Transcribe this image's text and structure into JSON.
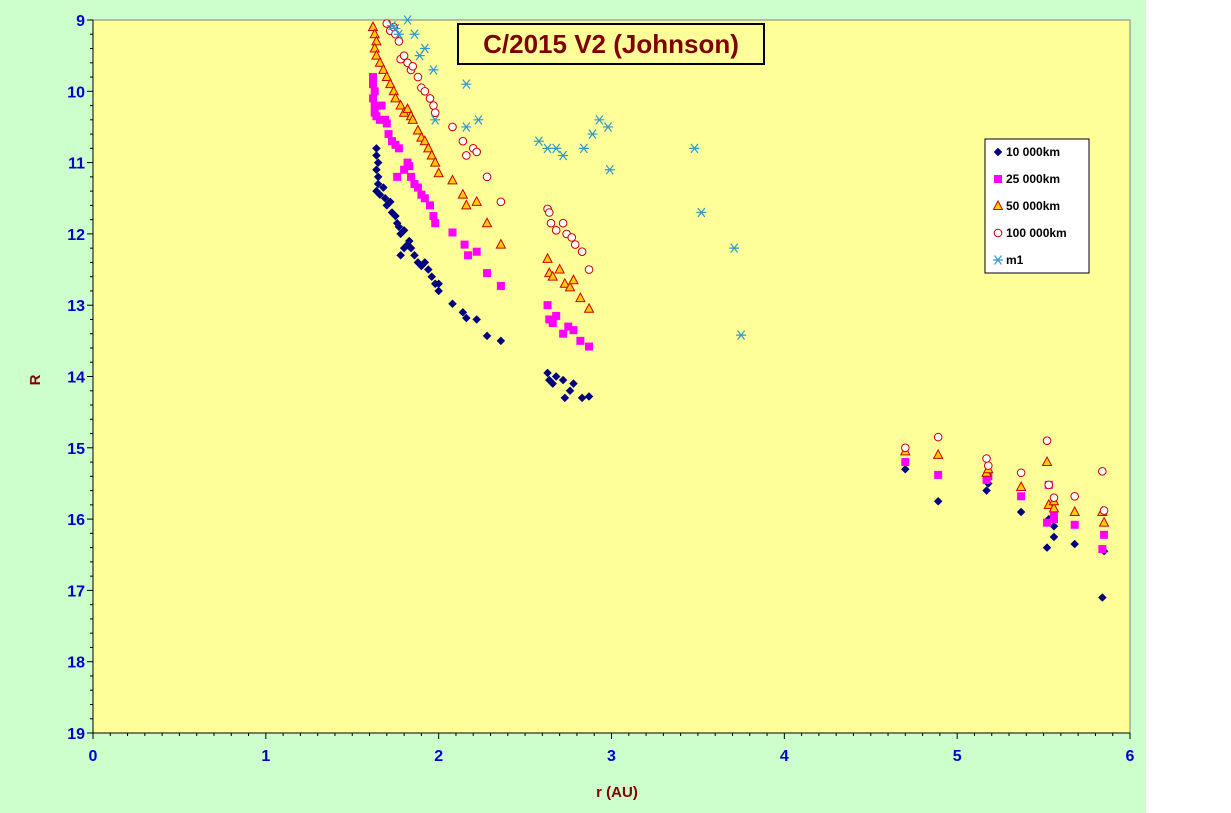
{
  "chart_data": {
    "type": "scatter",
    "title": "C/2015 V2 (Johnson)",
    "xlabel": "r (AU)",
    "ylabel": "R",
    "xlim": [
      0,
      6
    ],
    "ylim": [
      9,
      19
    ],
    "y_inverted": true,
    "x_ticks": [
      "0",
      "1",
      "2",
      "3",
      "4",
      "5",
      "6"
    ],
    "y_ticks": [
      "9",
      "10",
      "11",
      "12",
      "13",
      "14",
      "15",
      "16",
      "17",
      "18",
      "19"
    ],
    "grid": false,
    "plot_background": "#ffff99",
    "chart_background": "#ccffcc",
    "legend_position": "right",
    "series": [
      {
        "name": "10 000km",
        "marker": "diamond",
        "color": "#000080",
        "points": [
          [
            1.64,
            10.8
          ],
          [
            1.64,
            10.9
          ],
          [
            1.65,
            11.0
          ],
          [
            1.64,
            11.1
          ],
          [
            1.65,
            11.2
          ],
          [
            1.65,
            11.3
          ],
          [
            1.64,
            11.4
          ],
          [
            1.66,
            11.45
          ],
          [
            1.68,
            11.35
          ],
          [
            1.69,
            11.5
          ],
          [
            1.7,
            11.6
          ],
          [
            1.72,
            11.55
          ],
          [
            1.73,
            11.7
          ],
          [
            1.75,
            11.75
          ],
          [
            1.76,
            11.85
          ],
          [
            1.77,
            11.9
          ],
          [
            1.78,
            12.0
          ],
          [
            1.8,
            11.95
          ],
          [
            1.78,
            12.3
          ],
          [
            1.8,
            12.2
          ],
          [
            1.82,
            12.15
          ],
          [
            1.83,
            12.1
          ],
          [
            1.84,
            12.2
          ],
          [
            1.86,
            12.3
          ],
          [
            1.88,
            12.4
          ],
          [
            1.9,
            12.45
          ],
          [
            1.92,
            12.4
          ],
          [
            1.94,
            12.5
          ],
          [
            1.96,
            12.6
          ],
          [
            1.98,
            12.7
          ],
          [
            2.0,
            12.8
          ],
          [
            2.0,
            12.7
          ],
          [
            2.08,
            12.98
          ],
          [
            2.14,
            13.1
          ],
          [
            2.16,
            13.18
          ],
          [
            2.22,
            13.2
          ],
          [
            2.28,
            13.43
          ],
          [
            2.36,
            13.5
          ],
          [
            2.63,
            13.95
          ],
          [
            2.64,
            14.05
          ],
          [
            2.66,
            14.1
          ],
          [
            2.68,
            14.0
          ],
          [
            2.72,
            14.05
          ],
          [
            2.73,
            14.3
          ],
          [
            2.76,
            14.2
          ],
          [
            2.78,
            14.1
          ],
          [
            2.83,
            14.3
          ],
          [
            2.87,
            14.28
          ],
          [
            4.7,
            15.3
          ],
          [
            4.89,
            15.75
          ],
          [
            5.17,
            15.6
          ],
          [
            5.18,
            15.5
          ],
          [
            5.37,
            15.9
          ],
          [
            5.52,
            16.4
          ],
          [
            5.53,
            16.0
          ],
          [
            5.56,
            16.25
          ],
          [
            5.56,
            16.1
          ],
          [
            5.68,
            16.35
          ],
          [
            5.84,
            17.1
          ],
          [
            5.85,
            16.45
          ]
        ]
      },
      {
        "name": "25 000km",
        "marker": "square",
        "color": "#ff00ff",
        "points": [
          [
            1.62,
            9.8
          ],
          [
            1.62,
            9.9
          ],
          [
            1.63,
            10.0
          ],
          [
            1.62,
            10.1
          ],
          [
            1.63,
            10.2
          ],
          [
            1.63,
            10.3
          ],
          [
            1.64,
            10.35
          ],
          [
            1.66,
            10.4
          ],
          [
            1.67,
            10.2
          ],
          [
            1.69,
            10.4
          ],
          [
            1.7,
            10.45
          ],
          [
            1.71,
            10.6
          ],
          [
            1.73,
            10.7
          ],
          [
            1.75,
            10.75
          ],
          [
            1.77,
            10.8
          ],
          [
            1.76,
            11.2
          ],
          [
            1.8,
            11.1
          ],
          [
            1.82,
            11.0
          ],
          [
            1.83,
            11.05
          ],
          [
            1.84,
            11.2
          ],
          [
            1.86,
            11.3
          ],
          [
            1.88,
            11.35
          ],
          [
            1.9,
            11.45
          ],
          [
            1.92,
            11.5
          ],
          [
            1.95,
            11.6
          ],
          [
            1.97,
            11.75
          ],
          [
            1.98,
            11.85
          ],
          [
            2.08,
            11.98
          ],
          [
            2.15,
            12.15
          ],
          [
            2.17,
            12.3
          ],
          [
            2.22,
            12.25
          ],
          [
            2.28,
            12.55
          ],
          [
            2.36,
            12.73
          ],
          [
            2.63,
            13.0
          ],
          [
            2.64,
            13.2
          ],
          [
            2.66,
            13.25
          ],
          [
            2.68,
            13.15
          ],
          [
            2.72,
            13.4
          ],
          [
            2.75,
            13.3
          ],
          [
            2.78,
            13.35
          ],
          [
            2.82,
            13.5
          ],
          [
            2.87,
            13.58
          ],
          [
            4.7,
            15.2
          ],
          [
            4.89,
            15.38
          ],
          [
            5.17,
            15.45
          ],
          [
            5.18,
            15.4
          ],
          [
            5.37,
            15.68
          ],
          [
            5.52,
            16.05
          ],
          [
            5.53,
            15.52
          ],
          [
            5.56,
            16.0
          ],
          [
            5.56,
            15.95
          ],
          [
            5.68,
            16.08
          ],
          [
            5.84,
            16.42
          ],
          [
            5.85,
            16.22
          ]
        ]
      },
      {
        "name": "50 000km",
        "marker": "triangle",
        "color": "#cc0000",
        "fill": "#ffcc00",
        "points": [
          [
            1.62,
            9.1
          ],
          [
            1.63,
            9.2
          ],
          [
            1.64,
            9.3
          ],
          [
            1.63,
            9.4
          ],
          [
            1.64,
            9.5
          ],
          [
            1.66,
            9.6
          ],
          [
            1.68,
            9.7
          ],
          [
            1.7,
            9.8
          ],
          [
            1.72,
            9.9
          ],
          [
            1.74,
            10.0
          ],
          [
            1.75,
            10.1
          ],
          [
            1.78,
            10.2
          ],
          [
            1.8,
            10.3
          ],
          [
            1.82,
            10.25
          ],
          [
            1.84,
            10.35
          ],
          [
            1.85,
            10.4
          ],
          [
            1.88,
            10.55
          ],
          [
            1.9,
            10.65
          ],
          [
            1.92,
            10.7
          ],
          [
            1.94,
            10.8
          ],
          [
            1.96,
            10.9
          ],
          [
            1.98,
            11.0
          ],
          [
            2.0,
            11.15
          ],
          [
            2.08,
            11.25
          ],
          [
            2.14,
            11.45
          ],
          [
            2.16,
            11.6
          ],
          [
            2.22,
            11.55
          ],
          [
            2.28,
            11.85
          ],
          [
            2.36,
            12.15
          ],
          [
            2.63,
            12.35
          ],
          [
            2.64,
            12.55
          ],
          [
            2.66,
            12.6
          ],
          [
            2.7,
            12.5
          ],
          [
            2.73,
            12.7
          ],
          [
            2.76,
            12.75
          ],
          [
            2.78,
            12.65
          ],
          [
            2.82,
            12.9
          ],
          [
            2.87,
            13.05
          ],
          [
            4.7,
            15.05
          ],
          [
            4.89,
            15.1
          ],
          [
            5.17,
            15.35
          ],
          [
            5.18,
            15.3
          ],
          [
            5.37,
            15.55
          ],
          [
            5.52,
            15.2
          ],
          [
            5.53,
            15.8
          ],
          [
            5.56,
            15.85
          ],
          [
            5.56,
            15.75
          ],
          [
            5.68,
            15.9
          ],
          [
            5.84,
            15.9
          ],
          [
            5.85,
            16.05
          ]
        ]
      },
      {
        "name": "100 000km",
        "marker": "circle",
        "color": "#cc0000",
        "fill": "#ffffff",
        "points": [
          [
            1.7,
            9.05
          ],
          [
            1.72,
            9.15
          ],
          [
            1.74,
            9.1
          ],
          [
            1.75,
            9.2
          ],
          [
            1.77,
            9.3
          ],
          [
            1.78,
            9.55
          ],
          [
            1.8,
            9.5
          ],
          [
            1.82,
            9.6
          ],
          [
            1.84,
            9.7
          ],
          [
            1.85,
            9.65
          ],
          [
            1.88,
            9.8
          ],
          [
            1.9,
            9.95
          ],
          [
            1.92,
            10.0
          ],
          [
            1.95,
            10.1
          ],
          [
            1.97,
            10.2
          ],
          [
            1.98,
            10.3
          ],
          [
            2.08,
            10.5
          ],
          [
            2.14,
            10.7
          ],
          [
            2.16,
            10.9
          ],
          [
            2.2,
            10.8
          ],
          [
            2.22,
            10.85
          ],
          [
            2.28,
            11.2
          ],
          [
            2.36,
            11.55
          ],
          [
            2.63,
            11.65
          ],
          [
            2.64,
            11.7
          ],
          [
            2.65,
            11.85
          ],
          [
            2.68,
            11.95
          ],
          [
            2.72,
            11.85
          ],
          [
            2.74,
            12.0
          ],
          [
            2.77,
            12.05
          ],
          [
            2.79,
            12.15
          ],
          [
            2.83,
            12.25
          ],
          [
            2.87,
            12.5
          ],
          [
            4.7,
            15.0
          ],
          [
            4.89,
            14.85
          ],
          [
            5.17,
            15.15
          ],
          [
            5.18,
            15.25
          ],
          [
            5.37,
            15.35
          ],
          [
            5.52,
            14.9
          ],
          [
            5.53,
            15.52
          ],
          [
            5.56,
            15.7
          ],
          [
            5.68,
            15.68
          ],
          [
            5.84,
            15.33
          ],
          [
            5.85,
            15.88
          ]
        ]
      },
      {
        "name": "m1",
        "marker": "asterisk",
        "color": "#3399cc",
        "points": [
          [
            1.73,
            9.08
          ],
          [
            1.75,
            9.12
          ],
          [
            1.77,
            9.2
          ],
          [
            1.82,
            9.0
          ],
          [
            1.86,
            9.2
          ],
          [
            1.89,
            9.5
          ],
          [
            1.92,
            9.4
          ],
          [
            1.97,
            9.7
          ],
          [
            1.98,
            10.4
          ],
          [
            2.16,
            9.9
          ],
          [
            2.16,
            10.5
          ],
          [
            2.23,
            10.4
          ],
          [
            2.58,
            10.7
          ],
          [
            2.63,
            10.8
          ],
          [
            2.68,
            10.8
          ],
          [
            2.72,
            10.9
          ],
          [
            2.84,
            10.8
          ],
          [
            2.89,
            10.6
          ],
          [
            2.93,
            10.4
          ],
          [
            2.98,
            10.5
          ],
          [
            2.99,
            11.1
          ],
          [
            3.48,
            10.8
          ],
          [
            3.52,
            11.7
          ],
          [
            3.71,
            12.2
          ],
          [
            3.75,
            13.42
          ]
        ]
      }
    ]
  }
}
